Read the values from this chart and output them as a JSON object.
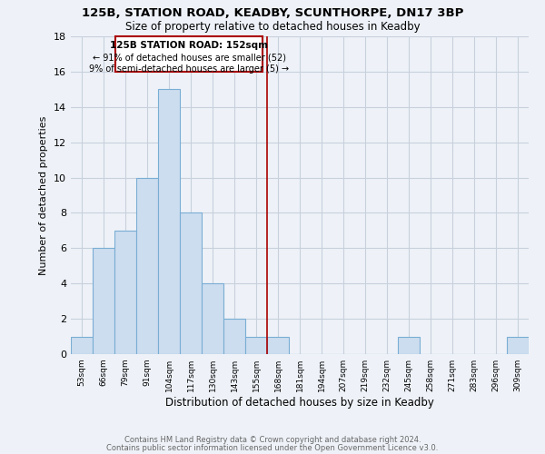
{
  "title": "125B, STATION ROAD, KEADBY, SCUNTHORPE, DN17 3BP",
  "subtitle": "Size of property relative to detached houses in Keadby",
  "xlabel": "Distribution of detached houses by size in Keadby",
  "ylabel": "Number of detached properties",
  "bin_labels": [
    "53sqm",
    "66sqm",
    "79sqm",
    "91sqm",
    "104sqm",
    "117sqm",
    "130sqm",
    "143sqm",
    "155sqm",
    "168sqm",
    "181sqm",
    "194sqm",
    "207sqm",
    "219sqm",
    "232sqm",
    "245sqm",
    "258sqm",
    "271sqm",
    "283sqm",
    "296sqm",
    "309sqm"
  ],
  "bar_values": [
    1,
    6,
    7,
    10,
    15,
    8,
    4,
    2,
    1,
    1,
    0,
    0,
    0,
    0,
    0,
    1,
    0,
    0,
    0,
    0,
    1
  ],
  "bar_color": "#ccddef",
  "bar_edge_color": "#7aadd4",
  "property_label": "125B STATION ROAD: 152sqm",
  "annotation_line1": "← 91% of detached houses are smaller (52)",
  "annotation_line2": "9% of semi-detached houses are larger (5) →",
  "vline_color": "#aa0000",
  "vline_x": 8.5,
  "ylim": [
    0,
    18
  ],
  "yticks": [
    0,
    2,
    4,
    6,
    8,
    10,
    12,
    14,
    16,
    18
  ],
  "footnote1": "Contains HM Land Registry data © Crown copyright and database right 2024.",
  "footnote2": "Contains public sector information licensed under the Open Government Licence v3.0.",
  "bg_color": "#eef2f8",
  "grid_color": "#c8d0dc"
}
